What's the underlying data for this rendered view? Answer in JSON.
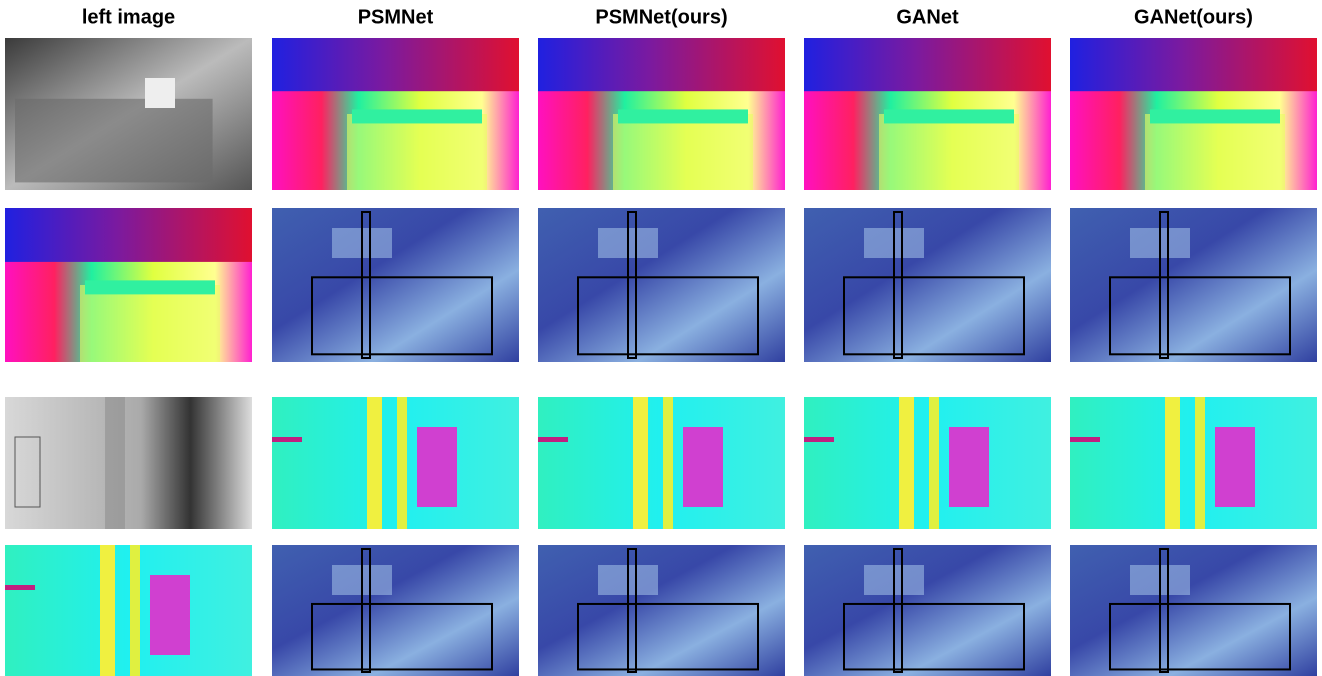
{
  "headers": [
    "left image",
    "PSMNet",
    "PSMNet(ours)",
    "GANet",
    "GANet(ours)"
  ]
}
